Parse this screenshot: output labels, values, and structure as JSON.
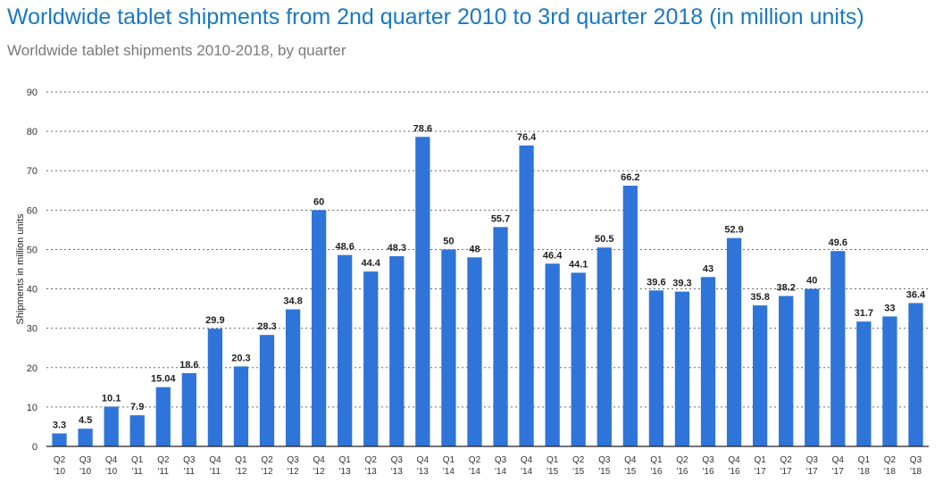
{
  "chart_data": {
    "type": "bar",
    "title": "Worldwide tablet shipments from 2nd quarter 2010 to 3rd quarter 2018 (in million units)",
    "subtitle": "Worldwide tablet shipments 2010-2018, by quarter",
    "xlabel": "",
    "ylabel": "Shipments in million units",
    "ylim": [
      0,
      90
    ],
    "yticks": [
      0,
      10,
      20,
      30,
      40,
      50,
      60,
      70,
      80,
      90
    ],
    "grid": true,
    "bar_color": "#2f74d8",
    "categories": [
      [
        "Q2",
        "'10"
      ],
      [
        "Q3",
        "'10"
      ],
      [
        "Q4",
        "'10"
      ],
      [
        "Q1",
        "'11"
      ],
      [
        "Q2",
        "'11"
      ],
      [
        "Q3",
        "'11"
      ],
      [
        "Q4",
        "'11"
      ],
      [
        "Q1",
        "'12"
      ],
      [
        "Q2",
        "'12"
      ],
      [
        "Q3",
        "'12"
      ],
      [
        "Q4",
        "'12"
      ],
      [
        "Q1",
        "'13"
      ],
      [
        "Q2",
        "'13"
      ],
      [
        "Q3",
        "'13"
      ],
      [
        "Q4",
        "'13"
      ],
      [
        "Q1",
        "'14"
      ],
      [
        "Q2",
        "'14"
      ],
      [
        "Q3",
        "'14"
      ],
      [
        "Q4",
        "'14"
      ],
      [
        "Q1",
        "'15"
      ],
      [
        "Q2",
        "'15"
      ],
      [
        "Q3",
        "'15"
      ],
      [
        "Q4",
        "'15"
      ],
      [
        "Q1",
        "'16"
      ],
      [
        "Q2",
        "'16"
      ],
      [
        "Q3",
        "'16"
      ],
      [
        "Q4",
        "'16"
      ],
      [
        "Q1",
        "'17"
      ],
      [
        "Q2",
        "'17"
      ],
      [
        "Q3",
        "'17"
      ],
      [
        "Q4",
        "'17"
      ],
      [
        "Q1",
        "'18"
      ],
      [
        "Q2",
        "'18"
      ],
      [
        "Q3",
        "'18"
      ]
    ],
    "values": [
      3.3,
      4.5,
      10.1,
      7.9,
      15.04,
      18.6,
      29.9,
      20.3,
      28.3,
      34.8,
      60,
      48.6,
      44.4,
      48.3,
      78.6,
      50,
      48,
      55.7,
      76.4,
      46.4,
      44.1,
      50.5,
      66.2,
      39.6,
      39.3,
      43,
      52.9,
      35.8,
      38.2,
      40,
      49.6,
      31.7,
      33,
      36.4
    ],
    "labels": [
      "3.3",
      "4.5",
      "10.1",
      "7.9",
      "15.04",
      "18.6",
      "29.9",
      "20.3",
      "28.3",
      "34.8",
      "60",
      "48.6",
      "44.4",
      "48.3",
      "78.6",
      "50",
      "48",
      "55.7",
      "76.4",
      "46.4",
      "44.1",
      "50.5",
      "66.2",
      "39.6",
      "39.3",
      "43",
      "52.9",
      "35.8",
      "38.2",
      "40",
      "49.6",
      "31.7",
      "33",
      "36.4"
    ]
  }
}
